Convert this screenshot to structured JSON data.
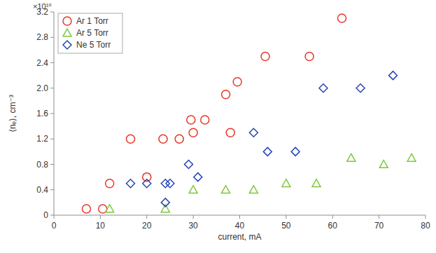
{
  "chart_data": {
    "type": "scatter",
    "xlabel": "current, mA",
    "ylabel": "⟨nₑ⟩, cm⁻³",
    "annotations": [
      "×10¹⁰"
    ],
    "xlim": [
      0,
      80
    ],
    "xticks": [
      0,
      10,
      20,
      30,
      40,
      50,
      60,
      70,
      80
    ],
    "ylim": [
      0,
      3.2
    ],
    "yticks": [
      0,
      0.4,
      0.8,
      1.2,
      1.6,
      {
        "value": 2,
        "label": "2.0"
      },
      2.4,
      2.8,
      3.2
    ],
    "grid": false,
    "legend": "upper left",
    "series": [
      {
        "name": "Ar 1 Torr",
        "color": "#e8372a",
        "marker": "circle",
        "x": [
          7,
          10.5,
          12,
          16.5,
          20,
          23.5,
          27,
          29.5,
          30,
          32.5,
          37,
          38,
          39.5,
          45.5,
          55,
          62
        ],
        "values": [
          0.1,
          0.1,
          0.5,
          1.2,
          0.6,
          1.2,
          1.2,
          1.5,
          1.3,
          1.5,
          1.9,
          1.3,
          2.1,
          2.5,
          2.5,
          3.1
        ]
      },
      {
        "name": "Ar 5 Torr",
        "color": "#7dc83c",
        "marker": "triangle",
        "x": [
          12,
          24,
          30,
          37,
          43,
          50,
          56.5,
          64,
          71,
          77
        ],
        "values": [
          0.1,
          0.1,
          0.4,
          0.4,
          0.4,
          0.5,
          0.5,
          0.9,
          0.8,
          0.9
        ]
      },
      {
        "name": "Ne 5 Torr",
        "color": "#2846b4",
        "marker": "diamond",
        "x": [
          16.5,
          20,
          24,
          25,
          24,
          29,
          31,
          43,
          46,
          52,
          58,
          66,
          73
        ],
        "values": [
          0.5,
          0.5,
          0.5,
          0.5,
          0.2,
          0.8,
          0.6,
          1.3,
          1.0,
          1.0,
          2.0,
          2.0,
          2.2
        ]
      }
    ]
  }
}
